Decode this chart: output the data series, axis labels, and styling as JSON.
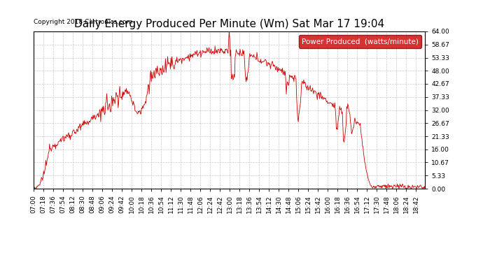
{
  "title": "Daily Energy Produced Per Minute (Wm) Sat Mar 17 19:04",
  "copyright": "Copyright 2018 Cartronics.com",
  "legend_label": "Power Produced  (watts/minute)",
  "legend_bg": "#cc0000",
  "legend_text_color": "#ffffff",
  "line_color": "#cc0000",
  "background_color": "#ffffff",
  "grid_color": "#bbbbbb",
  "ylim": [
    0,
    64.0
  ],
  "yticks": [
    0.0,
    5.33,
    10.67,
    16.0,
    21.33,
    26.67,
    32.0,
    37.33,
    42.67,
    48.0,
    53.33,
    58.67,
    64.0
  ],
  "ytick_labels": [
    "0.00",
    "5.33",
    "10.67",
    "16.00",
    "21.33",
    "26.67",
    "32.00",
    "37.33",
    "42.67",
    "48.00",
    "53.33",
    "58.67",
    "64.00"
  ],
  "title_fontsize": 11,
  "copyright_fontsize": 6.5,
  "tick_fontsize": 6.5,
  "legend_fontsize": 7.5,
  "figwidth": 6.9,
  "figheight": 3.75,
  "dpi": 100
}
